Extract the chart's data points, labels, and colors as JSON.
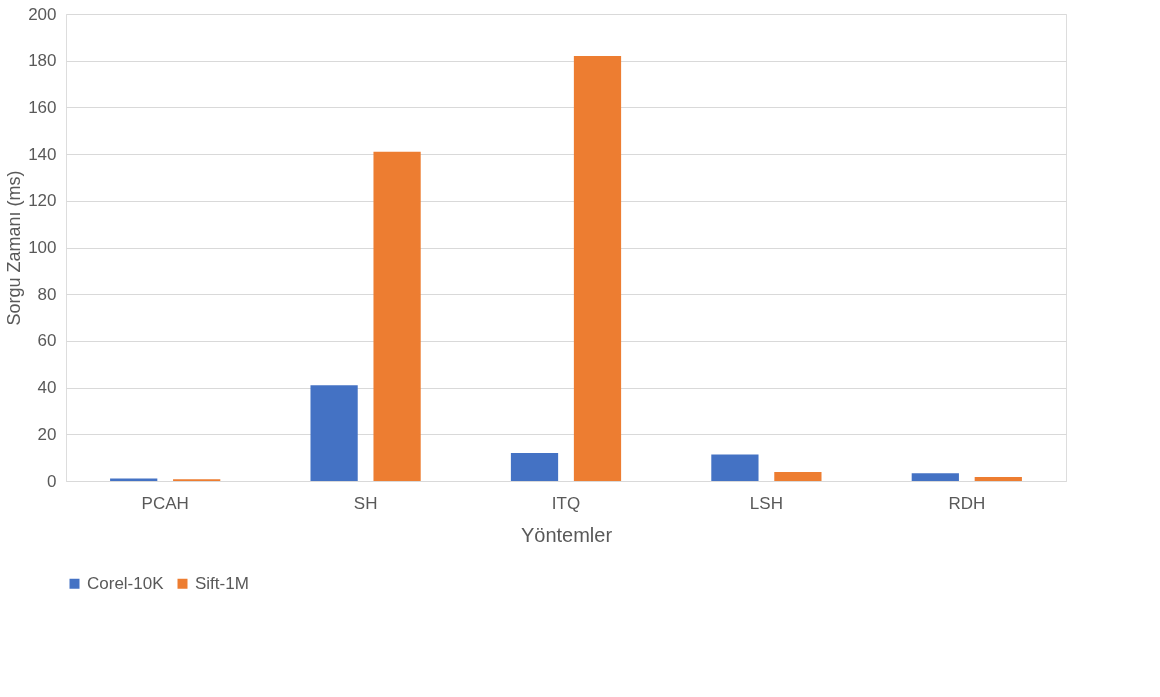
{
  "chart_data": {
    "type": "bar",
    "xlabel": "Yöntemler",
    "ylabel": "Sorgu Zamanı (ms)",
    "categories": [
      "PCAH",
      "SH",
      "ITQ",
      "LSH",
      "RDH"
    ],
    "series": [
      {
        "name": "Corel-10K",
        "color": "#4472c4",
        "values": [
          1.1,
          41,
          12,
          11.4,
          3.3
        ]
      },
      {
        "name": "Sift-1M",
        "color": "#ed7d31",
        "values": [
          0.8,
          141,
          182,
          3.9,
          1.7
        ]
      }
    ],
    "ylim": [
      0,
      200
    ],
    "yticks": [
      0,
      20,
      40,
      60,
      80,
      100,
      120,
      140,
      160,
      180,
      200
    ],
    "grid": "y",
    "legend": "bottom"
  }
}
